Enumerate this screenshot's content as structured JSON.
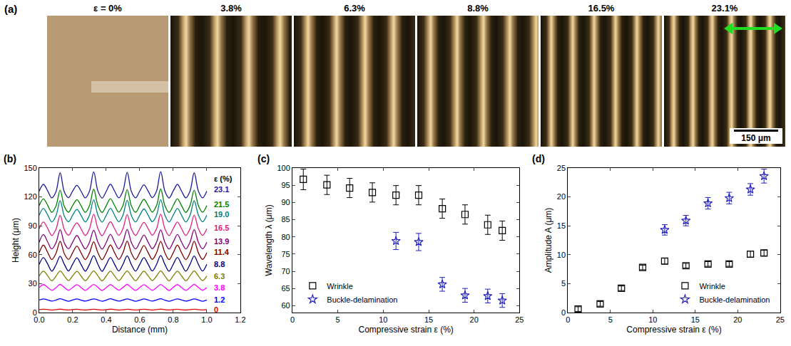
{
  "images": {
    "panel": "(a)",
    "labels": [
      "ε = 0%",
      "3.8%",
      "6.3%",
      "8.8%",
      "16.5%",
      "23.1%"
    ],
    "scale_bar": "150 μm"
  },
  "chart_data": [
    {
      "panel": "(b)",
      "type": "line",
      "x_label": "Distance (mm)",
      "y_label": "Height (μm)",
      "xlim": [
        0,
        1.2
      ],
      "xticks": [
        {
          "value": 0,
          "label": "0.0"
        },
        0.2,
        0.4,
        0.6,
        0.8,
        {
          "value": 1,
          "label": "1.0"
        },
        1.2
      ],
      "ylim": [
        0,
        150
      ],
      "yticks": [
        0,
        30,
        60,
        90,
        120,
        150
      ],
      "grid": false,
      "label_title": "ε (%)",
      "x": [
        0,
        0.025,
        0.05,
        0.075,
        0.1,
        0.125,
        0.15,
        0.175,
        0.2,
        0.225,
        0.25,
        0.275,
        0.3,
        0.325,
        0.35,
        0.375,
        0.4,
        0.425,
        0.45,
        0.475,
        0.5,
        0.525,
        0.55,
        0.575,
        0.6,
        0.625,
        0.65,
        0.675,
        0.7,
        0.725,
        0.75,
        0.775,
        0.8,
        0.825,
        0.85,
        0.875,
        0.9,
        0.925,
        0.95,
        0.975,
        1
      ],
      "series": [
        {
          "name": "0",
          "color": "#e00000",
          "values": [
            3.0,
            3.4,
            3.1,
            2.6,
            3.0,
            3.5,
            3.0,
            2.7,
            3.1,
            3.4,
            2.9,
            2.6,
            3.0,
            3.4,
            3.0,
            2.7,
            3.0,
            3.5,
            3.1,
            2.6,
            2.9,
            3.4,
            3.0,
            2.7,
            3.0,
            3.4,
            3.0,
            2.6,
            3.1,
            3.5,
            3.0,
            2.7,
            3.0,
            3.4,
            2.9,
            2.6,
            3.0,
            3.4,
            3.0,
            2.7,
            3.0
          ]
        },
        {
          "name": "1.2",
          "color": "#0000ff",
          "values": [
            13.0,
            14.2,
            13.1,
            11.9,
            12.9,
            14.3,
            13.0,
            11.8,
            13.1,
            14.1,
            12.9,
            11.9,
            13.0,
            14.2,
            13.1,
            11.8,
            12.9,
            14.3,
            13.0,
            11.9,
            13.0,
            14.1,
            13.1,
            11.8,
            12.9,
            14.2,
            13.0,
            11.9,
            13.1,
            14.3,
            12.9,
            11.8,
            13.0,
            14.2,
            13.0,
            11.9,
            12.9,
            14.1,
            13.1,
            11.8,
            13.0
          ]
        },
        {
          "name": "3.8",
          "color": "#ff00ff",
          "values": [
            26,
            29,
            26.2,
            23,
            25.8,
            29.2,
            26,
            23.1,
            26.1,
            28.9,
            25.9,
            23,
            26,
            29.1,
            26.2,
            22.9,
            25.9,
            29,
            26,
            23.2,
            26.1,
            29.2,
            25.8,
            23,
            26,
            28.9,
            26.1,
            23.1,
            25.9,
            29.1,
            26,
            22.9,
            26.2,
            29,
            25.9,
            23,
            26,
            29.2,
            26,
            23.1,
            26
          ]
        },
        {
          "name": "6.3",
          "color": "#808000",
          "values": [
            38,
            43,
            38.3,
            33,
            37.8,
            43.2,
            38,
            33.2,
            38.2,
            42.8,
            37.9,
            33,
            38,
            43.1,
            38.2,
            32.9,
            37.9,
            43,
            38,
            33.1,
            38.1,
            43.2,
            37.8,
            33,
            38,
            42.9,
            38.1,
            33.2,
            37.9,
            43.1,
            38,
            32.8,
            38.2,
            43,
            37.9,
            33,
            38,
            43.2,
            38,
            33.1,
            38
          ]
        },
        {
          "name": "8.8",
          "color": "#000080",
          "values": [
            50,
            57,
            50.5,
            43,
            49.5,
            58.5,
            50,
            43.2,
            50.3,
            56.8,
            49.8,
            43,
            50,
            59,
            50.2,
            42.8,
            49.8,
            57.2,
            50,
            43.1,
            50.2,
            58.8,
            49.7,
            43,
            50,
            57,
            50.1,
            43.2,
            49.9,
            59.2,
            50,
            42.9,
            50.2,
            57.1,
            49.8,
            43,
            50,
            58.6,
            50,
            43.1,
            50
          ]
        },
        {
          "name": "11.4",
          "color": "#800000",
          "values": [
            62,
            70,
            62.5,
            55,
            61.5,
            74,
            61,
            55.2,
            62.3,
            69,
            61.8,
            55,
            62,
            73.5,
            62.2,
            54.8,
            61.8,
            70.2,
            62,
            55.1,
            62.2,
            74.2,
            61.7,
            55,
            62,
            69.5,
            62.1,
            55.2,
            61.9,
            73.8,
            62,
            54.9,
            62.2,
            70,
            61.8,
            55,
            62,
            74,
            62,
            55.1,
            62
          ]
        },
        {
          "name": "13.9",
          "color": "#800080",
          "values": [
            73,
            81,
            73.5,
            66,
            72.5,
            86,
            72,
            66.2,
            73.3,
            80,
            72.8,
            66,
            73,
            85.5,
            73.2,
            65.8,
            72.8,
            81.2,
            73,
            66.1,
            73.2,
            86.2,
            72.7,
            66,
            73,
            80.5,
            73.1,
            66.2,
            72.9,
            85.8,
            73,
            65.9,
            73.2,
            81,
            72.8,
            66,
            73,
            86,
            73,
            66.1,
            73
          ]
        },
        {
          "name": "16.5",
          "color": "#e0207f",
          "values": [
            87,
            94,
            87.5,
            80,
            86.5,
            101,
            86,
            80.2,
            87.3,
            93,
            86.8,
            80,
            87,
            102,
            87.2,
            79.8,
            86.8,
            94.2,
            87,
            80.1,
            87.2,
            101.5,
            86.7,
            80,
            87,
            93.5,
            87.1,
            80.2,
            86.9,
            102.2,
            87,
            79.9,
            87.2,
            94,
            86.8,
            80,
            87,
            101,
            87,
            80.1,
            87
          ]
        },
        {
          "name": "19.0",
          "color": "#008080",
          "values": [
            101,
            108,
            101.5,
            94,
            100.5,
            116,
            100,
            94.2,
            101.3,
            107,
            100.8,
            94,
            101,
            117,
            101.2,
            93.8,
            100.8,
            108.2,
            101,
            94.1,
            101.2,
            116.5,
            100.7,
            94,
            101,
            107.5,
            101.1,
            94.2,
            100.9,
            117.2,
            101,
            93.9,
            101.2,
            108,
            100.8,
            94,
            101,
            116,
            101,
            94.1,
            101
          ]
        },
        {
          "name": "21.5",
          "color": "#008000",
          "values": [
            111,
            118,
            111.5,
            104,
            110.5,
            127,
            110,
            104.2,
            111.3,
            117,
            110.8,
            104,
            111,
            128,
            111.2,
            103.8,
            110.8,
            118.2,
            111,
            104.1,
            111.2,
            127.5,
            110.7,
            104,
            111,
            117.5,
            111.1,
            104.2,
            110.9,
            128.2,
            111,
            103.9,
            111.2,
            118,
            110.8,
            104,
            111,
            127,
            111,
            104.1,
            111
          ]
        },
        {
          "name": "23.1",
          "color": "#1a1a9a",
          "values": [
            126,
            133,
            126.5,
            119,
            125.5,
            145,
            125,
            119.2,
            126.3,
            132,
            125.8,
            119,
            126,
            146,
            126.2,
            118.8,
            125.8,
            133.2,
            126,
            119.1,
            126.2,
            145.5,
            125.7,
            119,
            126,
            132.5,
            126.1,
            119.2,
            125.9,
            146.2,
            126,
            118.9,
            126.2,
            133,
            125.8,
            119,
            126,
            145,
            126,
            119.1,
            126
          ]
        }
      ]
    },
    {
      "panel": "(c)",
      "type": "scatter",
      "x_label": "Compressive strain ε (%)",
      "y_label": "Wavelength λ (μm)",
      "xlim": [
        0,
        25
      ],
      "xticks": [
        0,
        5,
        10,
        15,
        20,
        25
      ],
      "ylim": [
        58,
        100
      ],
      "yticks": [
        60,
        65,
        70,
        75,
        80,
        85,
        90,
        95,
        100
      ],
      "grid": false,
      "legend": "lower left",
      "series": [
        {
          "name": "Wrinkle",
          "color": "#000000",
          "marker": "square-open",
          "x": [
            1.2,
            3.8,
            6.3,
            8.8,
            11.4,
            13.9,
            16.5,
            19.0,
            21.5,
            23.1
          ],
          "values": [
            96.7,
            95.1,
            94.2,
            92.9,
            92.1,
            92.1,
            88.2,
            86.5,
            83.5,
            81.8
          ],
          "error": [
            3.0,
            2.8,
            2.8,
            2.8,
            2.8,
            2.8,
            2.8,
            2.8,
            2.8,
            2.8
          ]
        },
        {
          "name": "Buckle-delamination",
          "color": "#2020c0",
          "marker": "star-open",
          "x": [
            11.4,
            13.9,
            16.5,
            19.0,
            21.5,
            23.1
          ],
          "values": [
            78.8,
            78.5,
            66.2,
            63.0,
            62.8,
            61.5
          ],
          "error": [
            2.5,
            2.5,
            2.0,
            2.0,
            2.0,
            2.0
          ]
        }
      ]
    },
    {
      "panel": "(d)",
      "type": "scatter",
      "x_label": "Compressive strain ε (%)",
      "y_label": "Amplitude A (μm)",
      "xlim": [
        0,
        25
      ],
      "xticks": [
        0,
        5,
        10,
        15,
        20,
        25
      ],
      "ylim": [
        0,
        25
      ],
      "yticks": [
        0,
        5,
        10,
        15,
        20,
        25
      ],
      "grid": false,
      "legend": "lower right",
      "series": [
        {
          "name": "Wrinkle",
          "color": "#000000",
          "marker": "square-open",
          "x": [
            1.2,
            3.8,
            6.3,
            8.8,
            11.4,
            13.9,
            16.5,
            19.0,
            21.5,
            23.1
          ],
          "values": [
            0.6,
            1.5,
            4.2,
            7.8,
            8.9,
            8.1,
            8.4,
            8.4,
            10.1,
            10.3
          ],
          "error": [
            0.4,
            0.4,
            0.4,
            0.4,
            0.5,
            0.4,
            0.4,
            0.4,
            0.5,
            0.5
          ]
        },
        {
          "name": "Buckle-delamination",
          "color": "#2020c0",
          "marker": "star-open",
          "x": [
            11.4,
            13.9,
            16.5,
            19.0,
            21.5,
            23.1
          ],
          "values": [
            14.3,
            15.9,
            18.9,
            19.8,
            21.3,
            23.6
          ],
          "error": [
            0.9,
            0.9,
            1.0,
            1.0,
            1.0,
            1.2
          ]
        }
      ]
    }
  ]
}
